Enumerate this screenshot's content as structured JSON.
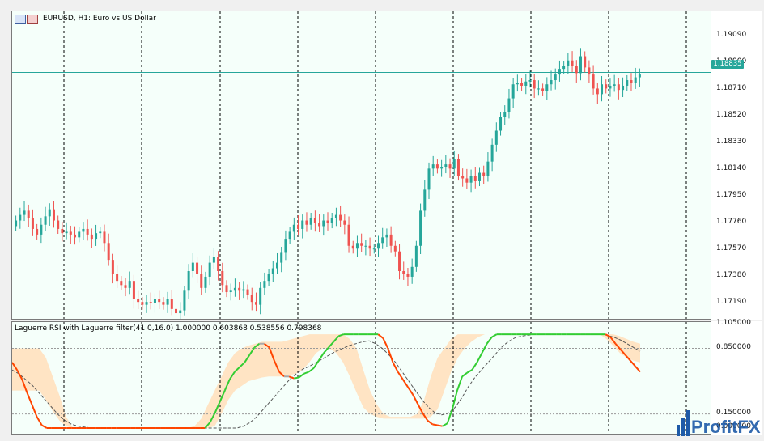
{
  "window": {
    "symbol_title": "EURUSD, H1:  Euro vs US Dollar",
    "indicator_title": "Laguerre RSI with Laguerre filter(41.0,16.0) 1.000000 0.603868 0.538556 0.798368",
    "current_price": "1.18835",
    "logo_text": "ProfitFX",
    "icons": [
      "chart-window-icon",
      "symbol-window-icon"
    ]
  },
  "price_axis": {
    "labels": [
      "1.19090",
      "1.18900",
      "1.18710",
      "1.18520",
      "1.18330",
      "1.18140",
      "1.17950",
      "1.17760",
      "1.17570",
      "1.17380",
      "1.17190"
    ]
  },
  "indicator_axis": {
    "labels": [
      "1.105000",
      "0.850000",
      "0.150000",
      "0.000000"
    ]
  },
  "colors": {
    "bull": "#26a69a",
    "bear": "#ef5350",
    "background": "#f5fffa",
    "band": "#ffe4c4",
    "rsi_up": "#32cd32",
    "rsi_down": "#ff4500",
    "rsi_neutral": "#a9a9a9"
  },
  "chart_data": [
    {
      "type": "candlestick",
      "title": "EURUSD, H1:  Euro vs US Dollar",
      "ylim": [
        1.1708,
        1.1927
      ],
      "current_price": 1.18835,
      "y_ticks": [
        1.1909,
        1.189,
        1.1871,
        1.1852,
        1.1833,
        1.1814,
        1.1795,
        1.1776,
        1.1757,
        1.1738,
        1.1719
      ],
      "close": [
        1.1778,
        1.1782,
        1.1785,
        1.178,
        1.1772,
        1.1768,
        1.1775,
        1.1781,
        1.1786,
        1.1778,
        1.1772,
        1.1769,
        1.177,
        1.1768,
        1.1766,
        1.177,
        1.1772,
        1.1768,
        1.1765,
        1.1769,
        1.177,
        1.1762,
        1.175,
        1.174,
        1.1735,
        1.1732,
        1.173,
        1.1735,
        1.1722,
        1.172,
        1.1718,
        1.172,
        1.1719,
        1.1722,
        1.172,
        1.1718,
        1.1722,
        1.1715,
        1.1712,
        1.1714,
        1.1728,
        1.1742,
        1.1748,
        1.174,
        1.173,
        1.1738,
        1.1748,
        1.1752,
        1.1742,
        1.1732,
        1.1727,
        1.1728,
        1.173,
        1.1728,
        1.1729,
        1.1725,
        1.172,
        1.1718,
        1.173,
        1.1735,
        1.174,
        1.1744,
        1.1748,
        1.1755,
        1.1765,
        1.177,
        1.1775,
        1.1772,
        1.1778,
        1.1775,
        1.178,
        1.1776,
        1.1774,
        1.1778,
        1.1776,
        1.178,
        1.1782,
        1.1778,
        1.1775,
        1.176,
        1.1758,
        1.1762,
        1.176,
        1.176,
        1.1758,
        1.1758,
        1.1762,
        1.1766,
        1.1768,
        1.176,
        1.1756,
        1.1742,
        1.174,
        1.1738,
        1.1745,
        1.176,
        1.1785,
        1.18,
        1.1815,
        1.1818,
        1.1815,
        1.1816,
        1.1818,
        1.1815,
        1.1822,
        1.181,
        1.1808,
        1.1805,
        1.181,
        1.1806,
        1.1812,
        1.181,
        1.182,
        1.1832,
        1.1842,
        1.1852,
        1.1855,
        1.1865,
        1.1875,
        1.1876,
        1.1874,
        1.1877,
        1.1878,
        1.1872,
        1.1872,
        1.187,
        1.1875,
        1.1878,
        1.1882,
        1.1886,
        1.1888,
        1.1892,
        1.1888,
        1.1883,
        1.1895,
        1.1887,
        1.1882,
        1.1872,
        1.1868,
        1.1875,
        1.1872,
        1.1874,
        1.1875,
        1.1871,
        1.1874,
        1.1878,
        1.1876,
        1.188,
        1.1882
      ]
    },
    {
      "type": "line",
      "title": "Laguerre RSI with Laguerre filter(41.0,16.0) 1.000000 0.603868 0.538556 0.798368",
      "ylim": [
        0,
        1.105
      ],
      "levels": [
        0.15,
        0.85
      ],
      "y_ticks": [
        1.105,
        0.85,
        0.15,
        0
      ],
      "series": [
        {
          "values": [
            0.7,
            0.62,
            0.52,
            0.38,
            0.25,
            0.12,
            0.03,
            0,
            0,
            0,
            0,
            0,
            0,
            0,
            0,
            0,
            0,
            0,
            0,
            0,
            0,
            0,
            0,
            0,
            0,
            0,
            0,
            0,
            0,
            0,
            0,
            0,
            0,
            0,
            0,
            0,
            0,
            0,
            0,
            0,
            0.06,
            0.16,
            0.28,
            0.4,
            0.52,
            0.6,
            0.65,
            0.7,
            0.78,
            0.86,
            0.9,
            0.9,
            0.86,
            0.72,
            0.6,
            0.55,
            0.55,
            0.53,
            0.54,
            0.58,
            0.6,
            0.64,
            0.72,
            0.8,
            0.86,
            0.92,
            0.98,
            1.0,
            1.0,
            1.0,
            1.0,
            1.0,
            1.0,
            1.0,
            1.0,
            0.96,
            0.85,
            0.7,
            0.6,
            0.52,
            0.44,
            0.36,
            0.26,
            0.16,
            0.08,
            0.04,
            0.03,
            0.02,
            0.05,
            0.2,
            0.4,
            0.55,
            0.59,
            0.62,
            0.7,
            0.8,
            0.9,
            0.97,
            1.0,
            1.0,
            1.0,
            1.0,
            1.0,
            1.0,
            1.0,
            1.0,
            1.0,
            1.0,
            1.0,
            1.0,
            1.0,
            1.0,
            1.0,
            1.0,
            1.0,
            1.0,
            1.0,
            1.0,
            1.0,
            1.0,
            1.0,
            0.97,
            0.9,
            0.84,
            0.78,
            0.72,
            0.66,
            0.6
          ]
        },
        {
          "values": [
            0.62,
            0.58,
            0.52,
            0.46,
            0.38,
            0.3,
            0.22,
            0.14,
            0.08,
            0.04,
            0.02,
            0.01,
            0,
            0,
            0,
            0,
            0,
            0,
            0,
            0,
            0,
            0,
            0,
            0,
            0,
            0,
            0,
            0,
            0,
            0,
            0,
            0,
            0,
            0,
            0,
            0.02,
            0.06,
            0.12,
            0.2,
            0.28,
            0.36,
            0.44,
            0.52,
            0.58,
            0.63,
            0.66,
            0.7,
            0.74,
            0.78,
            0.82,
            0.85,
            0.88,
            0.9,
            0.92,
            0.93,
            0.9,
            0.85,
            0.78,
            0.7,
            0.6,
            0.5,
            0.4,
            0.3,
            0.22,
            0.16,
            0.14,
            0.16,
            0.22,
            0.32,
            0.44,
            0.54,
            0.62,
            0.7,
            0.78,
            0.86,
            0.92,
            0.96,
            0.98,
            0.99,
            1.0,
            1.0,
            1.0,
            1.0,
            1.0,
            1.0,
            1.0,
            1.0,
            1.0,
            1.0,
            1.0,
            0.99,
            0.97,
            0.94,
            0.9,
            0.86,
            0.82
          ]
        },
        {
          "values": [
            0.85,
            0.85,
            0.85,
            0.85,
            0.85,
            0.75,
            0.55,
            0.35,
            0.12,
            0,
            0,
            0,
            0,
            0,
            0,
            0,
            0,
            0,
            0,
            0,
            0,
            0,
            0,
            0,
            0,
            0,
            0,
            0.02,
            0.1,
            0.25,
            0.4,
            0.55,
            0.7,
            0.8,
            0.85,
            0.88,
            0.9,
            0.92,
            0.92,
            0.92,
            0.92,
            0.94,
            0.96,
            0.98,
            1.0,
            1.0,
            1.0,
            1.0,
            1.0,
            1.0,
            0.95,
            0.85,
            0.62,
            0.4,
            0.25,
            0.15,
            0.12,
            0.12,
            0.12,
            0.12,
            0.15,
            0.3,
            0.55,
            0.75,
            0.85,
            0.95,
            1.0,
            1.0,
            1.0,
            1.0,
            1.0,
            1.0,
            1.0,
            1.0,
            1.0,
            1.0,
            1.0,
            1.0,
            1.0,
            1.0,
            1.0,
            1.0,
            1.0,
            1.0,
            1.0,
            1.0,
            1.0,
            1.0,
            1.0,
            1.0,
            0.98,
            0.95,
            0.92,
            0.9
          ]
        },
        {
          "values": [
            0.4,
            0.4,
            0.4,
            0.4,
            0.4,
            0.3,
            0.18,
            0.08,
            0.02,
            0,
            0,
            0,
            0,
            0,
            0,
            0,
            0,
            0,
            0,
            0,
            0,
            0,
            0,
            0,
            0,
            0,
            0,
            0,
            0,
            0,
            0.02,
            0.15,
            0.3,
            0.4,
            0.45,
            0.5,
            0.52,
            0.54,
            0.55,
            0.55,
            0.55,
            0.56,
            0.58,
            0.62,
            0.7,
            0.8,
            0.85,
            0.85,
            0.8,
            0.7,
            0.55,
            0.38,
            0.22,
            0.15,
            0.12,
            0.1,
            0.1,
            0.1,
            0.1,
            0.1,
            0.1,
            0.1,
            0.12,
            0.2,
            0.4,
            0.6,
            0.75,
            0.85,
            0.92,
            0.97,
            1.0,
            1.0,
            1.0,
            1.0,
            1.0,
            1.0,
            1.0,
            1.0,
            1.0,
            1.0,
            1.0,
            1.0,
            1.0,
            1.0,
            1.0,
            1.0,
            1.0,
            1.0,
            0.95,
            0.88,
            0.8,
            0.75,
            0.72,
            0.7
          ]
        }
      ]
    }
  ]
}
